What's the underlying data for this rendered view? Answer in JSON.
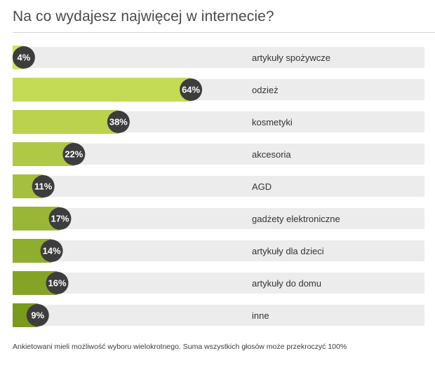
{
  "chart_data": {
    "type": "bar",
    "title": "Na co wydajesz najwięcej w internecie?",
    "categories": [
      "artykuły spożywcze",
      "odzież",
      "kosmetyki",
      "akcesoria",
      "AGD",
      "gadżety elektroniczne",
      "artykuły dla dzieci",
      "artykuły do domu",
      "inne"
    ],
    "values": [
      4,
      64,
      38,
      22,
      11,
      17,
      14,
      16,
      9
    ],
    "value_labels": [
      "4%",
      "64%",
      "38%",
      "22%",
      "11%",
      "17%",
      "14%",
      "16%",
      "9%"
    ],
    "unit": "%",
    "xlim": [
      0,
      100
    ],
    "orientation": "horizontal",
    "grid": false,
    "colors": {
      "bar_light": "#cfe45e",
      "bar_dark": "#7a9a1e",
      "track": "#ececec",
      "badge": "#3d3d3d",
      "badge_text": "#ffffff",
      "label_text": "#333333"
    }
  },
  "footnote": "Ankietowani mieli możliwość wyboru wielokrotnego. Suma wszystkich głosów może przekroczyć 100%"
}
